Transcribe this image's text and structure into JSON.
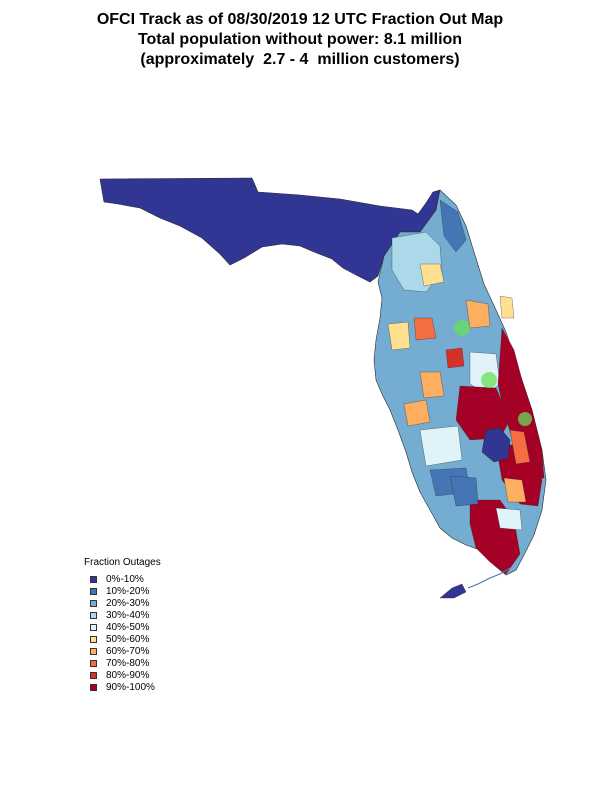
{
  "title": {
    "line1": "OFCI Track as of 08/30/2019 12 UTC Fraction Out Map",
    "line2": "Total population without power: 8.1 million",
    "line3": "(approximately  2.7 - 4  million customers)"
  },
  "legend": {
    "title": "Fraction Outages",
    "items": [
      {
        "label": "0%-10%",
        "color": "#313695"
      },
      {
        "label": "10%-20%",
        "color": "#4575b4"
      },
      {
        "label": "20%-30%",
        "color": "#74add1"
      },
      {
        "label": "30%-40%",
        "color": "#abd9e9"
      },
      {
        "label": "40%-50%",
        "color": "#e0f3f8"
      },
      {
        "label": "50%-60%",
        "color": "#fee090"
      },
      {
        "label": "60%-70%",
        "color": "#fdae61"
      },
      {
        "label": "70%-80%",
        "color": "#f46d43"
      },
      {
        "label": "80%-90%",
        "color": "#d73027"
      },
      {
        "label": "90%-100%",
        "color": "#a50026"
      }
    ]
  },
  "colors": {
    "outline": "#2a2a2a",
    "track_marker": "#66e05a"
  }
}
